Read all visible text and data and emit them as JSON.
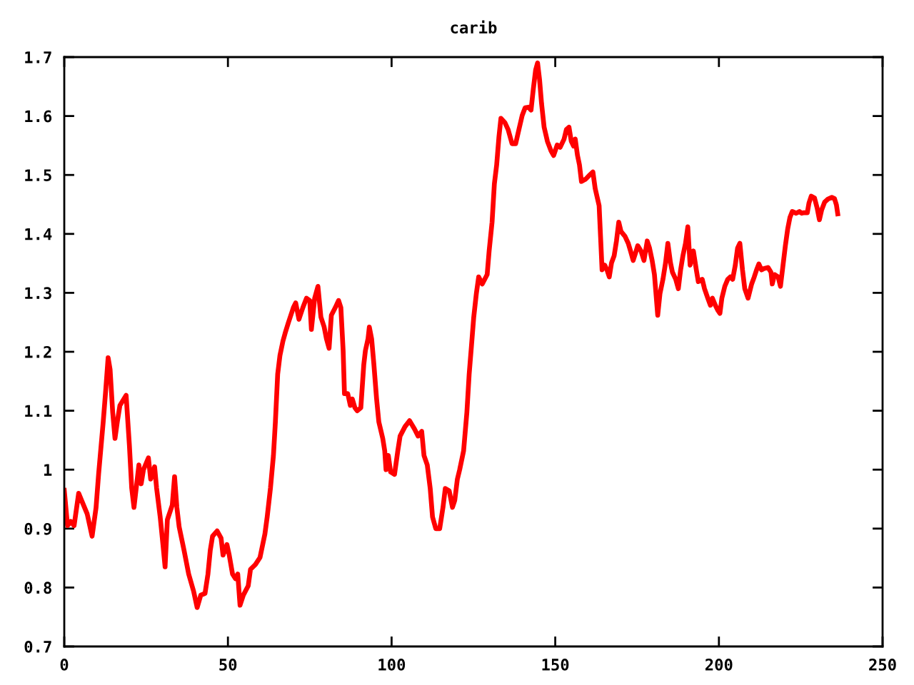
{
  "chart_data": {
    "type": "line",
    "title": "carib",
    "x": [
      0,
      1,
      2,
      3,
      4.4,
      5.5,
      7,
      8.5,
      9.7,
      10.5,
      11.9,
      12.6,
      13.4,
      14,
      14.8,
      15.5,
      16.2,
      17,
      18.9,
      19.9,
      20.6,
      21.3,
      22.8,
      23.5,
      24.2,
      25.7,
      26.4,
      27.6,
      28.2,
      29.3,
      30.2,
      30.8,
      31.5,
      33,
      33.7,
      34.4,
      35.1,
      36.6,
      38,
      39.5,
      40.6,
      41.7,
      43,
      43.9,
      44.6,
      45.3,
      46.7,
      47.9,
      48.5,
      49.7,
      50.4,
      51.4,
      52.3,
      53,
      53.7,
      54.7,
      56.2,
      56.9,
      58.4,
      59.8,
      61.3,
      62,
      63,
      63.9,
      64.5,
      65.2,
      65.9,
      66.8,
      67.5,
      68.5,
      70,
      70.7,
      71.7,
      72.9,
      74,
      75,
      75.5,
      76.5,
      77.5,
      78.4,
      79.4,
      80.1,
      80.9,
      81.6,
      82.8,
      83.8,
      84.5,
      85.2,
      85.6,
      86.6,
      87.4,
      88,
      88.8,
      89.5,
      90.6,
      91.5,
      92,
      92.8,
      93.2,
      93.9,
      94.6,
      95.4,
      96.1,
      97.3,
      97.9,
      98.3,
      99,
      99.7,
      100.9,
      101.9,
      102.6,
      104.1,
      105.5,
      107,
      108.1,
      109.2,
      109.9,
      110.9,
      111.8,
      112.5,
      113.5,
      114.7,
      115.7,
      116.4,
      117.6,
      118.6,
      119.3,
      120.1,
      120.8,
      122,
      123,
      123.7,
      124.4,
      125.1,
      125.9,
      126.6,
      127.7,
      129.2,
      129.8,
      130.7,
      131.4,
      132.1,
      132.8,
      133.4,
      134.6,
      135.6,
      136.8,
      137.9,
      138.9,
      139.9,
      140.8,
      141.8,
      142.6,
      143.3,
      144,
      144.6,
      145.2,
      145.8,
      146.6,
      147.6,
      148.7,
      149.5,
      150.6,
      151.5,
      152.7,
      153.4,
      154.2,
      154.9,
      155.6,
      156.1,
      156.8,
      157.4,
      158,
      159.3,
      160.7,
      161.5,
      162.2,
      162.9,
      163.4,
      163.9,
      164.3,
      165.1,
      165.8,
      166.5,
      167.2,
      168,
      168.7,
      169.4,
      170.1,
      171.3,
      172.3,
      173,
      173.8,
      174.5,
      175.2,
      176.2,
      177.1,
      178.1,
      178.8,
      179.6,
      180.3,
      181,
      181.3,
      182,
      182.9,
      183.7,
      184.4,
      185.2,
      185.8,
      186.8,
      187.6,
      188.3,
      189,
      189.8,
      190.5,
      191.2,
      192.2,
      193.1,
      193.7,
      194.9,
      195.6,
      196.6,
      197.4,
      198,
      198.9,
      199.6,
      200.3,
      200.9,
      201.8,
      202.7,
      203.5,
      204.2,
      205,
      205.7,
      206.4,
      207.2,
      207.9,
      208.9,
      210,
      210.8,
      211.5,
      212.2,
      213,
      213.7,
      215,
      215.9,
      216.3,
      217,
      218.1,
      218.8,
      219.5,
      220.3,
      221,
      221.7,
      222.4,
      223.6,
      224.6,
      225.3,
      226,
      227,
      227.5,
      228.2,
      229.2,
      230,
      230.7,
      231.4,
      232.3,
      233.3,
      234.5,
      235.3,
      235.9,
      236.3
    ],
    "series": [
      {
        "color": "#ff0000",
        "values": [
          0.965,
          0.905,
          0.912,
          0.905,
          0.96,
          0.945,
          0.925,
          0.887,
          0.935,
          0.993,
          1.081,
          1.13,
          1.19,
          1.17,
          1.097,
          1.053,
          1.081,
          1.109,
          1.126,
          1.041,
          0.969,
          0.936,
          1.008,
          0.976,
          1.0,
          1.02,
          0.984,
          1.005,
          0.969,
          0.92,
          0.87,
          0.835,
          0.915,
          0.94,
          0.988,
          0.936,
          0.903,
          0.863,
          0.823,
          0.794,
          0.766,
          0.787,
          0.79,
          0.823,
          0.863,
          0.887,
          0.896,
          0.884,
          0.855,
          0.873,
          0.855,
          0.823,
          0.815,
          0.823,
          0.77,
          0.787,
          0.803,
          0.831,
          0.839,
          0.851,
          0.891,
          0.92,
          0.969,
          1.024,
          1.081,
          1.162,
          1.194,
          1.218,
          1.232,
          1.25,
          1.275,
          1.283,
          1.255,
          1.275,
          1.291,
          1.287,
          1.238,
          1.291,
          1.311,
          1.259,
          1.242,
          1.222,
          1.206,
          1.262,
          1.275,
          1.287,
          1.275,
          1.202,
          1.129,
          1.129,
          1.109,
          1.12,
          1.105,
          1.1,
          1.105,
          1.178,
          1.202,
          1.222,
          1.242,
          1.222,
          1.178,
          1.121,
          1.081,
          1.053,
          1.032,
          1.0,
          1.024,
          0.996,
          0.992,
          1.032,
          1.057,
          1.073,
          1.083,
          1.069,
          1.057,
          1.065,
          1.024,
          1.008,
          0.968,
          0.92,
          0.9,
          0.9,
          0.936,
          0.968,
          0.964,
          0.936,
          0.948,
          0.984,
          1.0,
          1.032,
          1.097,
          1.162,
          1.21,
          1.259,
          1.299,
          1.327,
          1.315,
          1.331,
          1.371,
          1.42,
          1.485,
          1.517,
          1.565,
          1.596,
          1.589,
          1.577,
          1.553,
          1.553,
          1.577,
          1.601,
          1.614,
          1.615,
          1.61,
          1.646,
          1.678,
          1.69,
          1.662,
          1.622,
          1.581,
          1.557,
          1.541,
          1.533,
          1.551,
          1.547,
          1.561,
          1.577,
          1.581,
          1.557,
          1.549,
          1.561,
          1.533,
          1.517,
          1.489,
          1.493,
          1.501,
          1.505,
          1.477,
          1.46,
          1.448,
          1.388,
          1.339,
          1.347,
          1.339,
          1.327,
          1.351,
          1.363,
          1.388,
          1.42,
          1.404,
          1.396,
          1.384,
          1.371,
          1.355,
          1.367,
          1.38,
          1.371,
          1.355,
          1.388,
          1.376,
          1.355,
          1.331,
          1.283,
          1.262,
          1.299,
          1.323,
          1.351,
          1.384,
          1.351,
          1.335,
          1.323,
          1.307,
          1.339,
          1.363,
          1.384,
          1.412,
          1.347,
          1.371,
          1.339,
          1.319,
          1.323,
          1.307,
          1.291,
          1.279,
          1.291,
          1.279,
          1.271,
          1.265,
          1.291,
          1.311,
          1.323,
          1.327,
          1.323,
          1.347,
          1.376,
          1.384,
          1.339,
          1.307,
          1.291,
          1.315,
          1.327,
          1.339,
          1.349,
          1.339,
          1.341,
          1.343,
          1.335,
          1.315,
          1.331,
          1.327,
          1.311,
          1.343,
          1.38,
          1.408,
          1.428,
          1.438,
          1.435,
          1.438,
          1.435,
          1.436,
          1.436,
          1.452,
          1.464,
          1.461,
          1.444,
          1.424,
          1.441,
          1.454,
          1.459,
          1.462,
          1.46,
          1.449,
          1.434
        ]
      }
    ],
    "xlim": [
      0,
      250
    ],
    "xticks": [
      0,
      50,
      100,
      150,
      200,
      250
    ],
    "ylim": [
      0.7,
      1.7
    ],
    "yticks": [
      0.7,
      0.8,
      0.9,
      1,
      1.1,
      1.2,
      1.3,
      1.4,
      1.5,
      1.6,
      1.7
    ],
    "grid": false,
    "marker": "none",
    "line_style": "solid"
  }
}
